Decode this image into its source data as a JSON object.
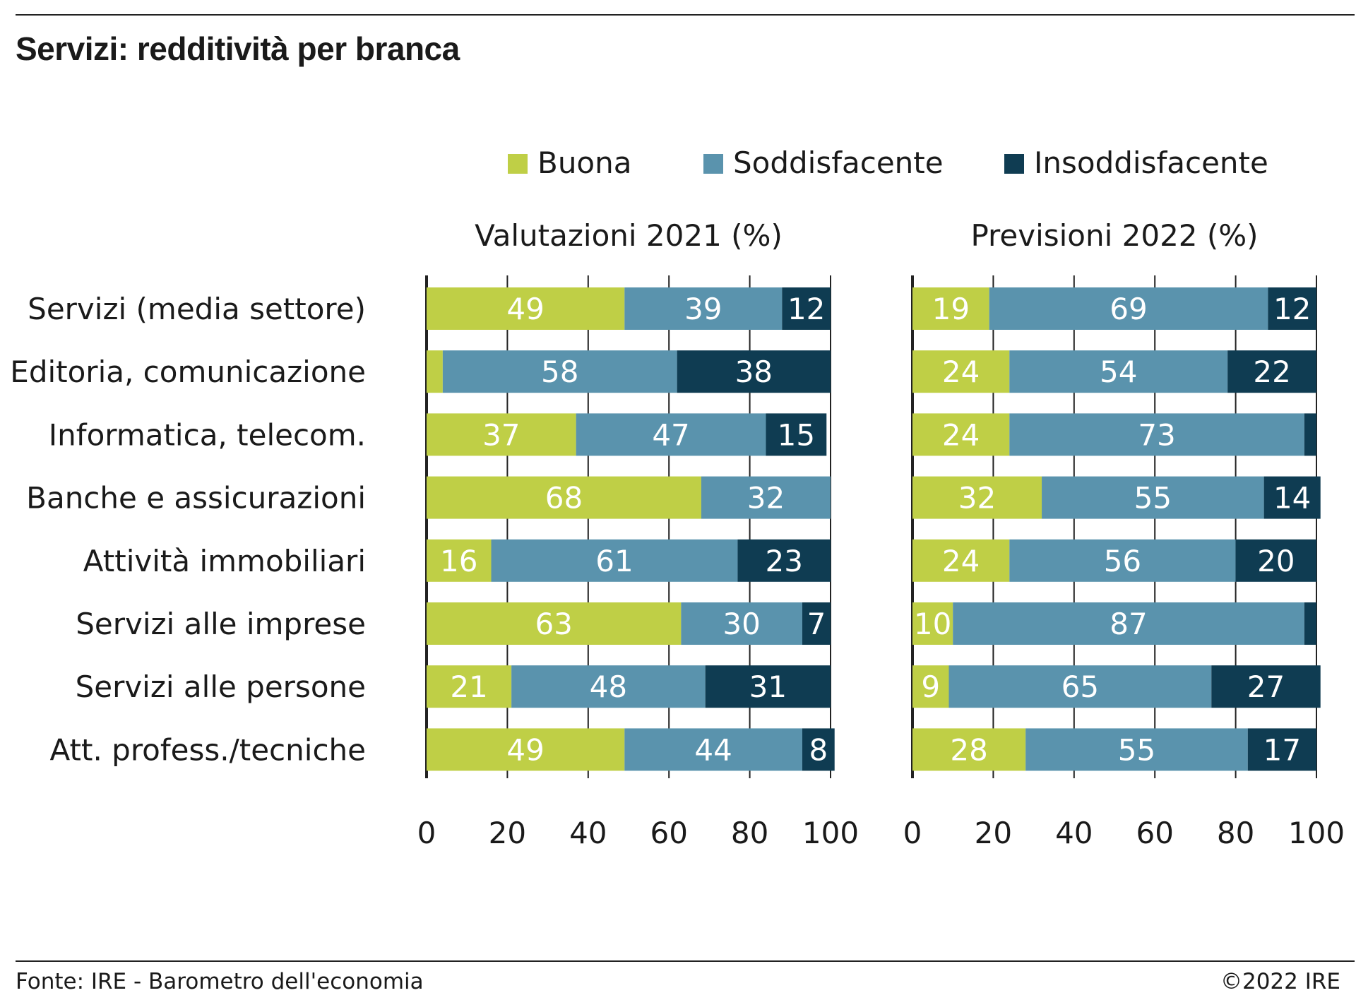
{
  "title": "Servizi: redditività per branca",
  "source": "Fonte: IRE - Barometro dell'economia",
  "copyright": "©2022 IRE",
  "colors": {
    "Buona": "#bfcf46",
    "Soddisfacente": "#5a93ad",
    "Insoddisfacente": "#0f3c52"
  },
  "chart_data": {
    "type": "bar",
    "orientation": "horizontal",
    "stacked": true,
    "legend": [
      "Buona",
      "Soddisfacente",
      "Insoddisfacente"
    ],
    "legend_position": "top",
    "categories": [
      "Servizi (media settore)",
      "Editoria, comunicazione",
      "Informatica, telecom.",
      "Banche e assicurazioni",
      "Attività immobiliari",
      "Servizi alle imprese",
      "Servizi alle persone",
      "Att. profess./tecniche"
    ],
    "panels": [
      {
        "title": "Valutazioni 2021 (%)",
        "xlim": [
          0,
          100
        ],
        "xticks": [
          0,
          20,
          40,
          60,
          80,
          100
        ],
        "series": [
          {
            "name": "Buona",
            "values": [
              49,
              4,
              37,
              68,
              16,
              63,
              21,
              49
            ],
            "labels": [
              "49",
              "",
              "37",
              "68",
              "16",
              "63",
              "21",
              "49"
            ]
          },
          {
            "name": "Soddisfacente",
            "values": [
              39,
              58,
              47,
              32,
              61,
              30,
              48,
              44
            ],
            "labels": [
              "39",
              "58",
              "47",
              "32",
              "61",
              "30",
              "48",
              "44"
            ]
          },
          {
            "name": "Insoddisfacente",
            "values": [
              12,
              38,
              15,
              0,
              23,
              7,
              31,
              8
            ],
            "labels": [
              "12",
              "38",
              "15",
              "",
              "23",
              "7",
              "31",
              "8"
            ]
          }
        ]
      },
      {
        "title": "Previsioni 2022 (%)",
        "xlim": [
          0,
          100
        ],
        "xticks": [
          0,
          20,
          40,
          60,
          80,
          100
        ],
        "series": [
          {
            "name": "Buona",
            "values": [
              19,
              24,
              24,
              32,
              24,
              10,
              9,
              28
            ],
            "labels": [
              "19",
              "24",
              "24",
              "32",
              "24",
              "10",
              "9",
              "28"
            ]
          },
          {
            "name": "Soddisfacente",
            "values": [
              69,
              54,
              73,
              55,
              56,
              87,
              65,
              55
            ],
            "labels": [
              "69",
              "54",
              "73",
              "55",
              "56",
              "87",
              "65",
              "55"
            ]
          },
          {
            "name": "Insoddisfacente",
            "values": [
              12,
              22,
              3,
              14,
              20,
              3,
              27,
              17
            ],
            "labels": [
              "12",
              "22",
              "",
              "14",
              "20",
              "",
              "27",
              "17"
            ]
          }
        ]
      }
    ]
  }
}
